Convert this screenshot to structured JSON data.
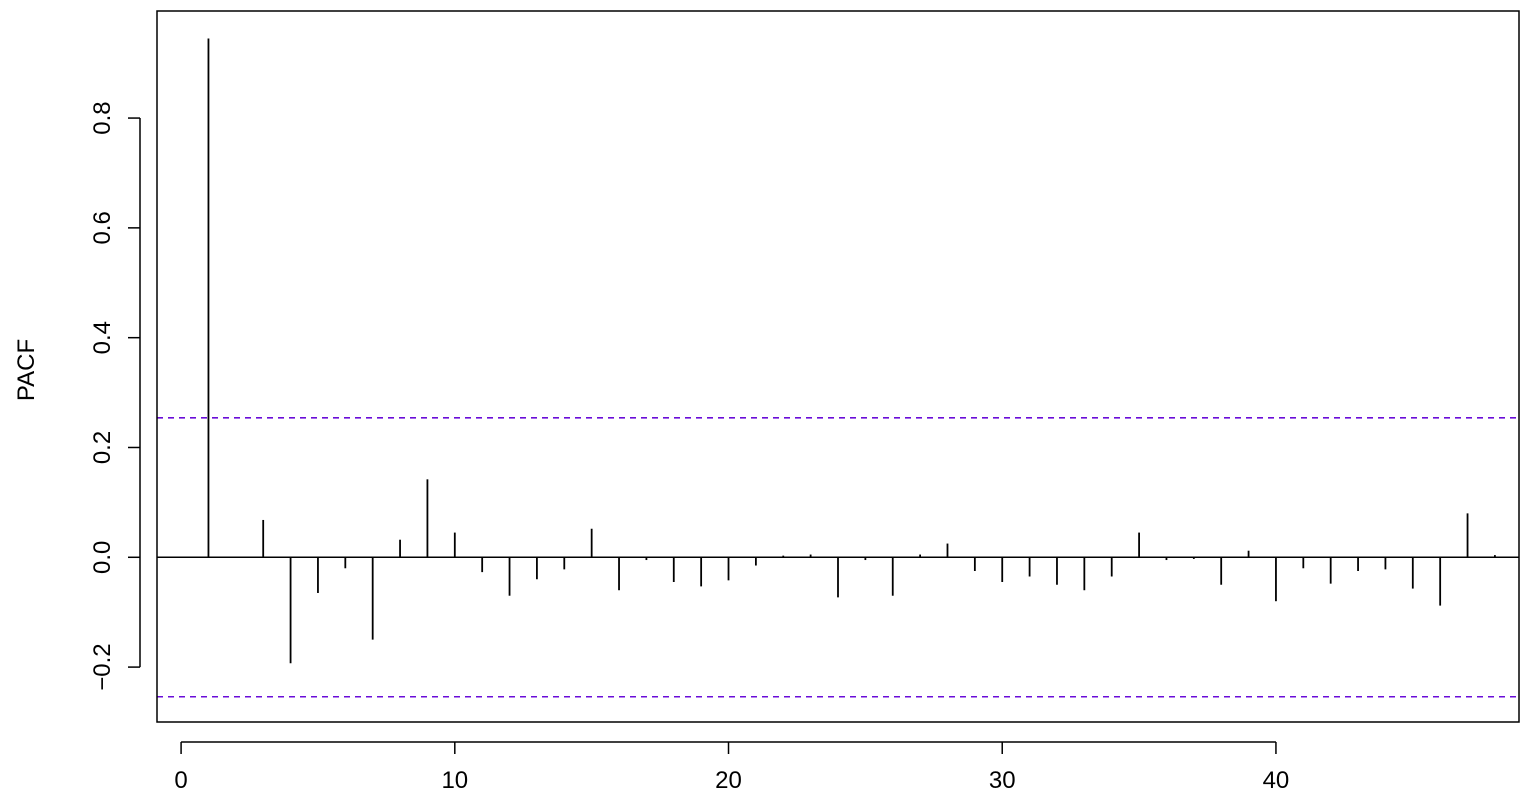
{
  "chart_data": {
    "type": "bar",
    "title": "",
    "xlabel": "",
    "ylabel": "PACF",
    "xlim": [
      -0.88,
      48.88
    ],
    "ylim": [
      -0.3,
      0.995
    ],
    "x_ticks": [
      0,
      10,
      20,
      30,
      40
    ],
    "x_tick_labels": [
      "0",
      "10",
      "20",
      "30",
      "40"
    ],
    "y_ticks": [
      -0.2,
      0.0,
      0.2,
      0.4,
      0.6,
      0.8
    ],
    "y_tick_labels": [
      "−0.2",
      "0.0",
      "0.2",
      "0.4",
      "0.6",
      "0.8"
    ],
    "grid": false,
    "baseline": 0,
    "confidence_bounds": [
      0.254,
      -0.254
    ],
    "confidence_color": "#6a0dd8",
    "bar_color": "#000000",
    "x": [
      1,
      2,
      3,
      4,
      5,
      6,
      7,
      8,
      9,
      10,
      11,
      12,
      13,
      14,
      15,
      16,
      17,
      18,
      19,
      20,
      21,
      22,
      23,
      24,
      25,
      26,
      27,
      28,
      29,
      30,
      31,
      32,
      33,
      34,
      35,
      36,
      37,
      38,
      39,
      40,
      41,
      42,
      43,
      44,
      45,
      46,
      47,
      48
    ],
    "values": [
      0.945,
      0.0,
      0.068,
      -0.193,
      -0.065,
      -0.02,
      -0.15,
      0.032,
      0.142,
      0.045,
      -0.027,
      -0.07,
      -0.04,
      -0.022,
      0.052,
      -0.06,
      -0.005,
      -0.045,
      -0.053,
      -0.042,
      -0.015,
      0.003,
      0.005,
      -0.073,
      -0.005,
      -0.07,
      0.005,
      0.025,
      -0.025,
      -0.045,
      -0.035,
      -0.05,
      -0.06,
      -0.035,
      0.045,
      -0.005,
      -0.003,
      -0.05,
      0.012,
      -0.08,
      -0.02,
      -0.048,
      -0.025,
      -0.022,
      -0.057,
      -0.088,
      0.08,
      0.004
    ]
  }
}
